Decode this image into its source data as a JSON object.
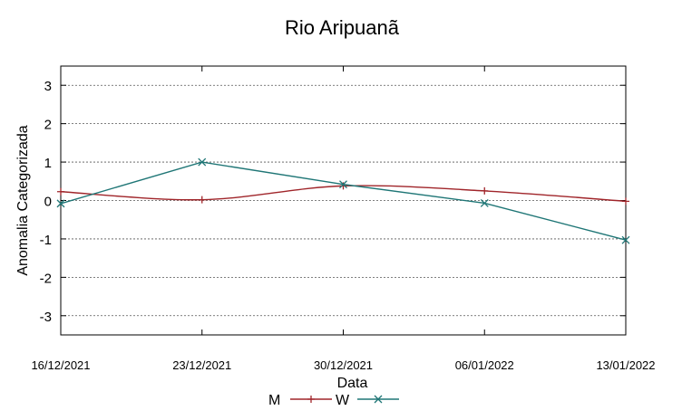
{
  "chart_data": {
    "type": "line",
    "title": "Rio Aripuanã",
    "xlabel": "Data",
    "ylabel": "Anomalia Categorizada",
    "categories": [
      "16/12/2021",
      "23/12/2021",
      "30/12/2021",
      "06/01/2022",
      "13/01/2022"
    ],
    "ylim": [
      -3.5,
      3.5
    ],
    "yticks": [
      3,
      2,
      1,
      0,
      -1,
      -2,
      -3
    ],
    "grid": true,
    "legend_position": "bottom",
    "series": [
      {
        "name": "M",
        "color": "#a0252a",
        "marker": "plus",
        "smooth": true,
        "values": [
          0.23,
          0.02,
          0.38,
          0.25,
          -0.02
        ]
      },
      {
        "name": "W",
        "color": "#1f7676",
        "marker": "cross",
        "smooth": false,
        "values": [
          -0.08,
          1.0,
          0.42,
          -0.07,
          -1.03
        ]
      }
    ]
  }
}
